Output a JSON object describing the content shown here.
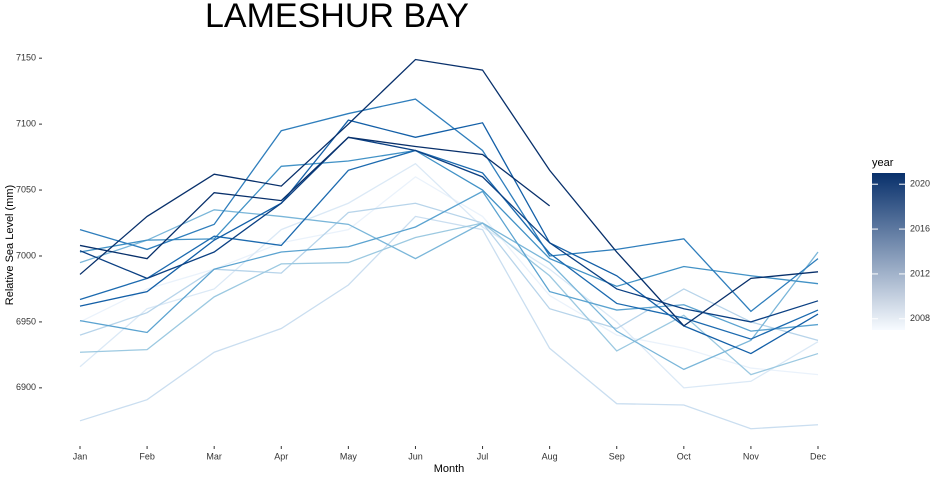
{
  "chart_data": {
    "type": "line",
    "title": "LAMESHUR BAY",
    "x_label": "Month",
    "y_label": "Relative Sea Level (mm)",
    "categories": [
      "Jan",
      "Feb",
      "Mar",
      "Apr",
      "May",
      "Jun",
      "Jul",
      "Aug",
      "Sep",
      "Oct",
      "Nov",
      "Dec"
    ],
    "ylim": [
      6865,
      7160
    ],
    "yticks": [
      6900,
      6950,
      7000,
      7050,
      7100,
      7150
    ],
    "grid": false,
    "colorbar": {
      "title": "year",
      "lim": [
        2007,
        2021
      ],
      "ticks": [
        2008,
        2012,
        2016,
        2020
      ],
      "colors": [
        "#f7fbff",
        "#08306b"
      ]
    },
    "series": [
      {
        "color": "#eaf2fb",
        "values": [
          6950,
          6975,
          6990,
          7010,
          7020,
          7060,
          7030,
          6970,
          6940,
          6930,
          6915,
          6910
        ]
      },
      {
        "color": "#dbe9f6",
        "values": [
          6916,
          6960,
          6975,
          7020,
          7040,
          7070,
          7022,
          6990,
          6950,
          6900,
          6905,
          6935
        ]
      },
      {
        "color": "#cadef0",
        "values": [
          6875,
          6891,
          6927,
          6945,
          6978,
          7030,
          7020,
          6930,
          6888,
          6887,
          6869,
          6872
        ]
      },
      {
        "color": "#b7d4ea",
        "values": [
          6940,
          6957,
          6990,
          6987,
          7033,
          7040,
          7025,
          6960,
          6945,
          6975,
          6950,
          6936
        ]
      },
      {
        "color": "#9cc9e1",
        "values": [
          6927,
          6929,
          6969,
          6994,
          6995,
          7014,
          7025,
          6985,
          6928,
          6955,
          6910,
          6926
        ]
      },
      {
        "color": "#7ab6d9",
        "values": [
          6995,
          7012,
          7035,
          7030,
          7024,
          6998,
          7025,
          6995,
          6943,
          6914,
          6936,
          7003
        ]
      },
      {
        "color": "#5ba3d0",
        "values": [
          6951,
          6942,
          6990,
          7003,
          7007,
          7022,
          7049,
          6973,
          6959,
          6963,
          6943,
          6948
        ]
      },
      {
        "color": "#4292c6",
        "values": [
          7003,
          7012,
          7013,
          7068,
          7072,
          7080,
          7050,
          6998,
          6977,
          6992,
          6985,
          6979
        ]
      },
      {
        "color": "#2f7ebc",
        "values": [
          7020,
          7005,
          7024,
          7095,
          7108,
          7119,
          7080,
          7000,
          7005,
          7013,
          6958,
          6998
        ]
      },
      {
        "color": "#1c6aaf",
        "values": [
          6967,
          6983,
          7015,
          7008,
          7065,
          7080,
          7063,
          7002,
          6964,
          6953,
          6937,
          6959
        ]
      },
      {
        "color": "#135fa7",
        "values": [
          6962,
          6973,
          7012,
          7040,
          7103,
          7090,
          7101,
          7010,
          6985,
          6947,
          6926,
          6956
        ]
      },
      {
        "color": "#0b4083",
        "values": [
          7004,
          6983,
          7003,
          7040,
          7090,
          7080,
          7060,
          7010,
          6975,
          6960,
          6950,
          6966
        ]
      },
      {
        "color": "#08306b",
        "values": [
          6986,
          7030,
          7062,
          7053,
          7100,
          7149,
          7141,
          7065,
          7003,
          6947,
          6983,
          6988
        ]
      },
      {
        "color": "#08306b",
        "values": [
          7008,
          6998,
          7048,
          7042,
          7090,
          7083,
          7077,
          7038,
          null,
          null,
          null,
          null
        ]
      }
    ]
  }
}
